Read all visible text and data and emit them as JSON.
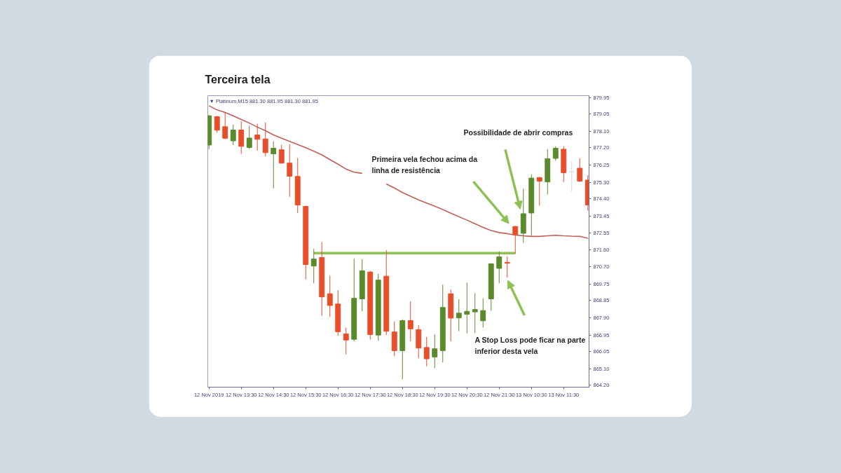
{
  "chart_data": {
    "type": "candlestick",
    "title": "Terceira tela",
    "subtitle": "▼ Platinum,M15 881.30 881.95 881.30 881.95",
    "categories": [
      "12 Nov 2019",
      null,
      null,
      null,
      "12 Nov 13:30",
      null,
      null,
      null,
      "12 Nov 14:30",
      null,
      null,
      null,
      "12 Nov 15:30",
      null,
      null,
      null,
      "12 Nov 16:30",
      null,
      null,
      null,
      "12 Nov 17:30",
      null,
      null,
      null,
      "12 Nov 18:30",
      null,
      null,
      null,
      "12 Nov 19:30",
      null,
      null,
      null,
      "12 Nov 20:30",
      null,
      null,
      null,
      "12 Nov 21:30",
      null,
      null,
      null,
      "13 Nov 10:30",
      null,
      null,
      null,
      "13 Nov 11:30",
      null,
      null,
      null
    ],
    "ohlc": [
      [
        877.35,
        878.99,
        877.12,
        878.95
      ],
      [
        878.9,
        878.95,
        878.02,
        878.16
      ],
      [
        878.35,
        879.13,
        877.67,
        877.72
      ],
      [
        877.58,
        878.47,
        877.35,
        878.17
      ],
      [
        878.17,
        878.65,
        876.87,
        877.28
      ],
      [
        877.21,
        878.4,
        877.14,
        877.73
      ],
      [
        877.9,
        878.51,
        877.04,
        877.66
      ],
      [
        877.68,
        878.58,
        876.73,
        876.93
      ],
      [
        876.87,
        877.56,
        874.98,
        877.17
      ],
      [
        877.09,
        877.37,
        876.32,
        876.36
      ],
      [
        876.36,
        877.39,
        874.52,
        875.64
      ],
      [
        875.63,
        876.64,
        873.63,
        874.07
      ],
      [
        873.99,
        874.02,
        870.0,
        870.81
      ],
      [
        870.73,
        871.67,
        869.78,
        871.11
      ],
      [
        871.19,
        872.04,
        868.0,
        869.04
      ],
      [
        869.21,
        870.19,
        867.94,
        868.57
      ],
      [
        868.65,
        869.41,
        866.91,
        867.13
      ],
      [
        867.01,
        867.36,
        865.9,
        866.68
      ],
      [
        866.72,
        871.12,
        866.61,
        868.96
      ],
      [
        868.93,
        871.11,
        868.25,
        870.47
      ],
      [
        870.4,
        870.45,
        866.7,
        866.98
      ],
      [
        866.95,
        870.3,
        866.65,
        869.96
      ],
      [
        870.17,
        871.6,
        866.95,
        867.16
      ],
      [
        867.12,
        867.7,
        865.79,
        866.1
      ],
      [
        866.1,
        867.81,
        864.53,
        867.74
      ],
      [
        867.74,
        868.8,
        866.61,
        867.29
      ],
      [
        867.25,
        867.5,
        865.68,
        866.24
      ],
      [
        866.27,
        866.85,
        865.24,
        865.65
      ],
      [
        865.75,
        866.98,
        865.14,
        866.2
      ],
      [
        866.1,
        869.71,
        865.45,
        868.46
      ],
      [
        869.21,
        869.44,
        866.61,
        867.88
      ],
      [
        867.89,
        868.91,
        867.16,
        868.15
      ],
      [
        868.09,
        869.82,
        867.05,
        868.25
      ],
      [
        868.22,
        869.24,
        867.07,
        868.35
      ],
      [
        867.73,
        868.96,
        867.36,
        868.29
      ],
      [
        868.93,
        870.88,
        868.28,
        870.85
      ],
      [
        870.6,
        871.53,
        869.78,
        871.23
      ],
      [
        870.93,
        871.26,
        870.1,
        870.88
      ],
      [
        872.89,
        872.92,
        871.4,
        872.45
      ],
      [
        872.52,
        874.96,
        871.99,
        873.59
      ],
      [
        873.63,
        875.74,
        872.38,
        875.54
      ],
      [
        875.57,
        875.6,
        874.03,
        875.37
      ],
      [
        875.33,
        877.12,
        874.64,
        876.6
      ],
      [
        876.62,
        877.28,
        876.49,
        877.17
      ],
      [
        877.12,
        877.28,
        875.33,
        875.83
      ],
      [
        875.88,
        876.46,
        874.8,
        875.88
      ],
      [
        876.08,
        876.62,
        875.34,
        875.37
      ],
      [
        875.43,
        875.7,
        873.75,
        874.07
      ]
    ],
    "colors": [
      "#5b8a2d",
      "#e94e2b",
      "#e94e2b",
      "#5b8a2d",
      "#e94e2b",
      "#5b8a2d",
      "#e94e2b",
      "#e94e2b",
      "#5b8a2d",
      "#e94e2b",
      "#e94e2b",
      "#e94e2b",
      "#e94e2b",
      "#5b8a2d",
      "#e94e2b",
      "#e94e2b",
      "#e94e2b",
      "#e94e2b",
      "#5b8a2d",
      "#5b8a2d",
      "#e94e2b",
      "#5b8a2d",
      "#e94e2b",
      "#e94e2b",
      "#5b8a2d",
      "#e94e2b",
      "#e94e2b",
      "#e94e2b",
      "#5b8a2d",
      "#5b8a2d",
      "#e94e2b",
      "#5b8a2d",
      "#5b8a2d",
      "#5b8a2d",
      "#5b8a2d",
      "#5b8a2d",
      "#5b8a2d",
      "#e94e2b",
      "#e94e2b",
      "#5b8a2d",
      "#5b8a2d",
      "#e94e2b",
      "#5b8a2d",
      "#5b8a2d",
      "#e94e2b",
      "#d9d9d9",
      "#e94e2b",
      "#e94e2b"
    ],
    "series": [
      {
        "type": "line",
        "color": "#c0605a",
        "values": [
          879.5,
          879.27,
          879.13,
          878.95,
          878.75,
          878.55,
          878.33,
          878.13,
          877.9,
          877.72,
          877.55,
          877.38,
          877.2,
          877.01,
          876.81,
          876.55,
          876.3,
          876.03,
          875.86,
          875.8,
          null,
          null,
          875.22,
          875.0,
          874.75,
          874.55,
          874.35,
          874.17,
          874.0,
          873.82,
          873.62,
          873.43,
          873.24,
          873.04,
          872.84,
          872.67,
          872.56,
          872.5,
          872.42,
          872.38,
          872.35,
          872.35,
          872.38,
          872.41,
          872.38,
          872.36,
          872.35,
          872.25
        ]
      },
      {
        "type": "line",
        "color": "#8dc153",
        "values": [
          null,
          null,
          null,
          null,
          null,
          null,
          null,
          null,
          null,
          null,
          null,
          null,
          null,
          871.43,
          871.43,
          871.43,
          871.43,
          871.43,
          871.43,
          871.43,
          871.43,
          871.43,
          871.43,
          871.43,
          871.43,
          871.43,
          871.43,
          871.43,
          871.43,
          871.43,
          871.43,
          871.43,
          871.43,
          871.43,
          871.43,
          871.43,
          871.43,
          871.43,
          871.43,
          null,
          null,
          null,
          null,
          null,
          null,
          null,
          null,
          null
        ]
      }
    ],
    "ylim": [
      864.1,
      880.05
    ],
    "yticks": [
      879.95,
      879.05,
      {
        "value": 878.1,
        "label": "878.10"
      },
      {
        "value": 877.2,
        "label": "877.20"
      },
      876.25,
      {
        "value": 875.3,
        "label": "875.30"
      },
      {
        "value": 874.4,
        "label": "874.40"
      },
      873.45,
      872.55,
      {
        "value": 871.6,
        "label": "871.60"
      },
      {
        "value": 870.7,
        "label": "870.70"
      },
      869.75,
      868.85,
      {
        "value": 867.9,
        "label": "867.90"
      },
      866.95,
      866.05,
      {
        "value": 865.1,
        "label": "865.10"
      },
      {
        "value": 864.2,
        "label": "864.20"
      }
    ],
    "annotations": [
      "Possibilidade de abrir compras",
      "Primeira vela fechou acima da linha de resistência",
      "A Stop Loss pode ficar na parte inferior desta vela"
    ]
  }
}
